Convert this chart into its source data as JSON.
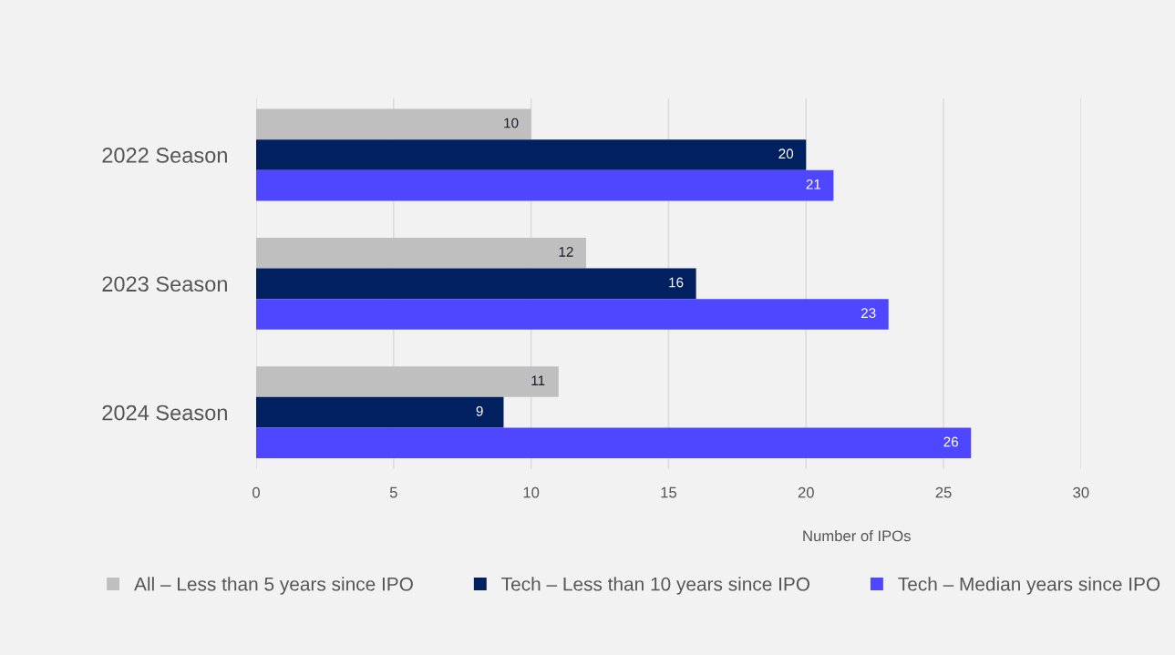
{
  "chart_data": {
    "type": "bar",
    "orientation": "horizontal",
    "categories": [
      "2022 Season",
      "2023 Season",
      "2024 Season"
    ],
    "series": [
      {
        "name": "All – Less than 5 years since IPO",
        "color": "#bfbfbf",
        "values": [
          10,
          12,
          11
        ]
      },
      {
        "name": "Tech – Less than 10 years since IPO",
        "color": "#002060",
        "values": [
          20,
          16,
          9
        ]
      },
      {
        "name": "Tech – Median years since IPO",
        "color": "#4f46ff",
        "values": [
          21,
          23,
          26
        ]
      }
    ],
    "xlabel": "Number of IPOs",
    "xlim": [
      0,
      30
    ],
    "xticks": [
      0,
      5,
      10,
      15,
      20,
      25,
      30
    ],
    "grid": "x",
    "legend": "bottom",
    "data_labels": true
  }
}
